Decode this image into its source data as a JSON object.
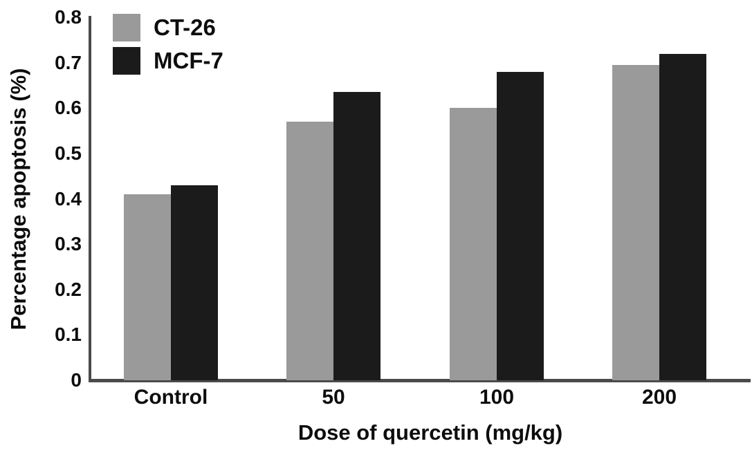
{
  "chart_data": {
    "type": "bar",
    "title": "",
    "xlabel": "Dose of quercetin (mg/kg)",
    "ylabel": "Percentage apoptosis (%)",
    "categories": [
      "Control",
      "50",
      "100",
      "200"
    ],
    "series": [
      {
        "name": "CT-26",
        "color": "#9a9a9a",
        "values": [
          0.41,
          0.57,
          0.6,
          0.695
        ]
      },
      {
        "name": "MCF-7",
        "color": "#1b1b1b",
        "values": [
          0.43,
          0.635,
          0.68,
          0.72
        ]
      }
    ],
    "ylim": [
      0,
      0.8
    ],
    "yticks": [
      0,
      0.1,
      0.2,
      0.3,
      0.4,
      0.5,
      0.6,
      0.7,
      0.8
    ],
    "ytick_labels": [
      "0",
      "0.1",
      "0.2",
      "0.3",
      "0.4",
      "0.5",
      "0.6",
      "0.7",
      "0.8"
    ],
    "grid": false,
    "legend_position": "top-left"
  },
  "colors": {
    "background": "#ffffff",
    "axis": "#4a4a4a",
    "text": "#0d0d0d",
    "ct26_gray": "#9a9a9a",
    "mcf7_black": "#1b1b1b"
  }
}
